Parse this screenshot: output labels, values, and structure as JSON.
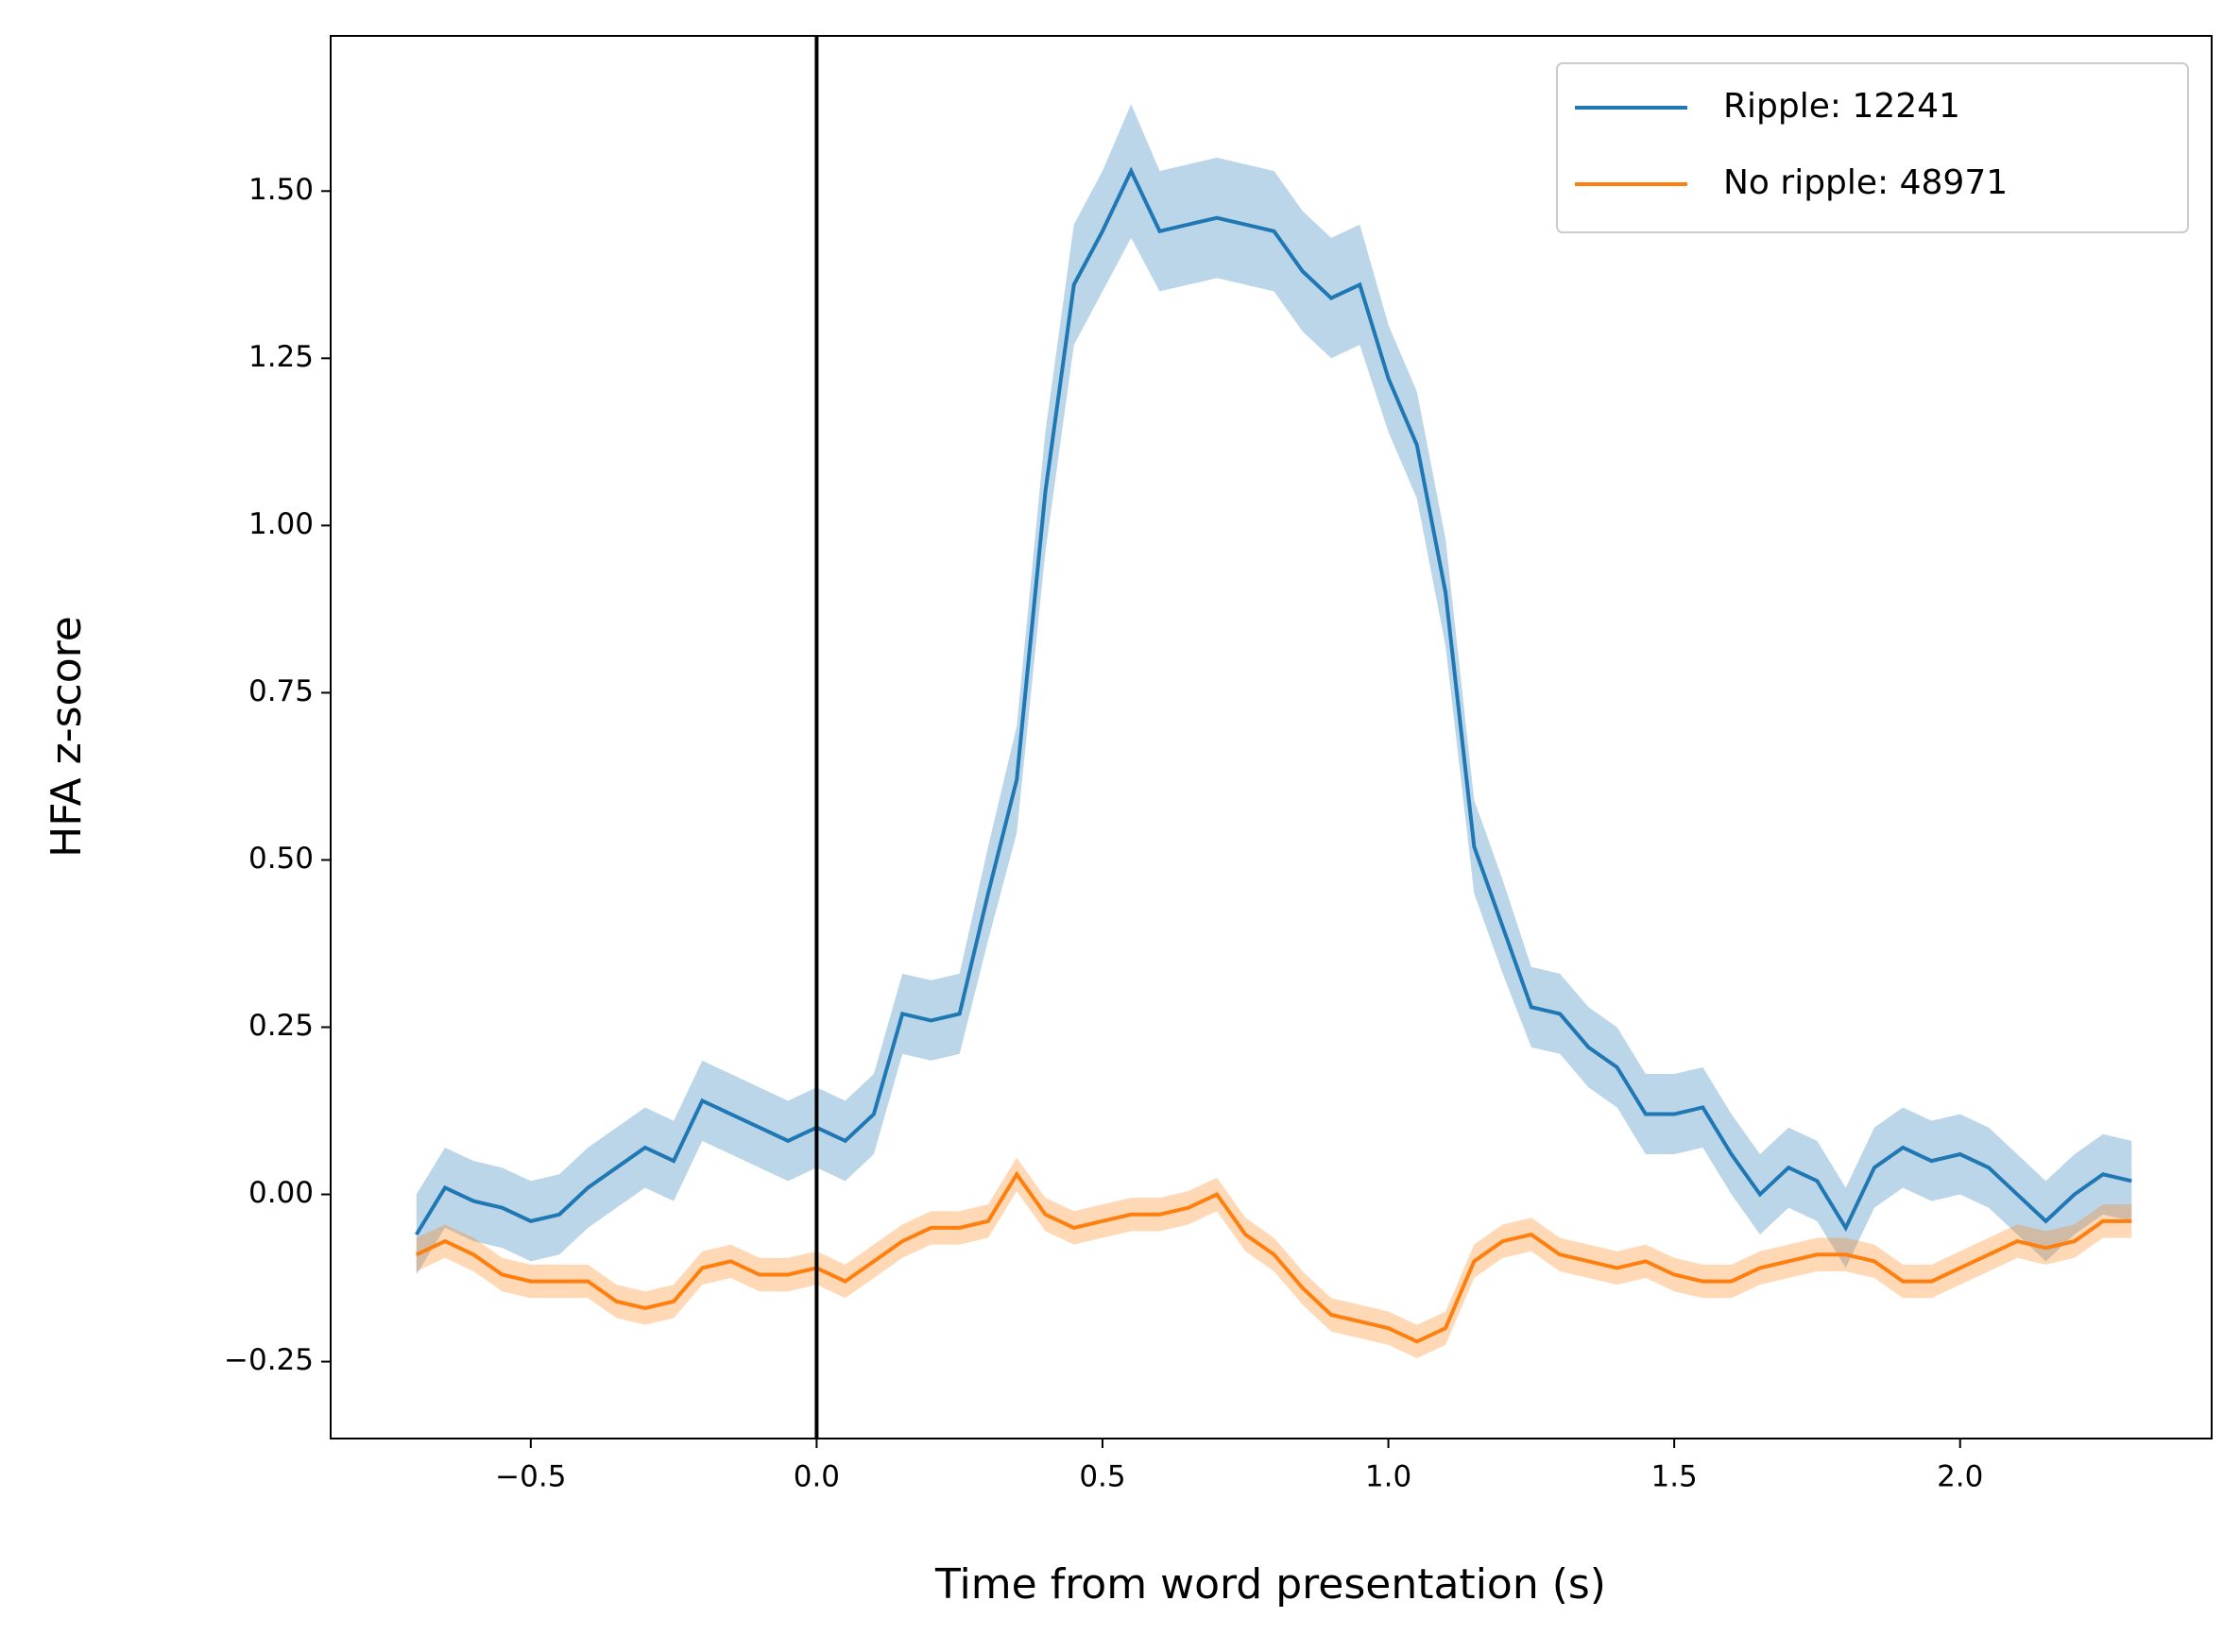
{
  "chart_data": {
    "type": "line",
    "x_label": "Time from word presentation (s)",
    "y_label": "HFA z-score",
    "x": [
      -0.7,
      -0.65,
      -0.6,
      -0.55,
      -0.5,
      -0.45,
      -0.4,
      -0.35,
      -0.3,
      -0.25,
      -0.2,
      -0.15,
      -0.1,
      -0.05,
      0,
      0.05,
      0.1,
      0.15,
      0.2,
      0.25,
      0.3,
      0.35,
      0.4,
      0.45,
      0.5,
      0.55,
      0.6,
      0.65,
      0.7,
      0.75,
      0.8,
      0.85,
      0.9,
      0.95,
      1,
      1.05,
      1.1,
      1.15,
      1.2,
      1.25,
      1.3,
      1.35,
      1.4,
      1.45,
      1.5,
      1.55,
      1.6,
      1.65,
      1.7,
      1.75,
      1.8,
      1.85,
      1.9,
      1.95,
      2,
      2.05,
      2.1,
      2.15,
      2.2,
      2.25,
      2.3
    ],
    "series": [
      {
        "name": "Ripple: 12241",
        "color": "#1f77b4",
        "values": [
          -0.06,
          0.01,
          -0.01,
          -0.02,
          -0.04,
          -0.03,
          0.01,
          0.04,
          0.07,
          0.05,
          0.14,
          0.12,
          0.1,
          0.08,
          0.1,
          0.08,
          0.12,
          0.27,
          0.26,
          0.27,
          0.45,
          0.62,
          1.05,
          1.36,
          1.44,
          1.53,
          1.44,
          1.45,
          1.46,
          1.45,
          1.44,
          1.38,
          1.34,
          1.36,
          1.22,
          1.12,
          0.9,
          0.52,
          0.4,
          0.28,
          0.27,
          0.22,
          0.19,
          0.12,
          0.12,
          0.13,
          0.06,
          0,
          0.04,
          0.02,
          -0.05,
          0.04,
          0.07,
          0.05,
          0.06,
          0.04,
          0,
          -0.04,
          0,
          0.03,
          0.02
        ],
        "errors": [
          0.06,
          0.06,
          0.06,
          0.06,
          0.06,
          0.06,
          0.06,
          0.06,
          0.06,
          0.06,
          0.06,
          0.06,
          0.06,
          0.06,
          0.06,
          0.06,
          0.06,
          0.06,
          0.06,
          0.06,
          0.07,
          0.08,
          0.09,
          0.09,
          0.09,
          0.1,
          0.09,
          0.09,
          0.09,
          0.09,
          0.09,
          0.09,
          0.09,
          0.09,
          0.08,
          0.08,
          0.08,
          0.07,
          0.07,
          0.06,
          0.06,
          0.06,
          0.06,
          0.06,
          0.06,
          0.06,
          0.06,
          0.06,
          0.06,
          0.06,
          0.06,
          0.06,
          0.06,
          0.06,
          0.06,
          0.06,
          0.06,
          0.06,
          0.06,
          0.06,
          0.06
        ]
      },
      {
        "name": "No ripple: 48971",
        "color": "#ff7f0e",
        "values": [
          -0.09,
          -0.07,
          -0.09,
          -0.12,
          -0.13,
          -0.13,
          -0.13,
          -0.16,
          -0.17,
          -0.16,
          -0.11,
          -0.1,
          -0.12,
          -0.12,
          -0.11,
          -0.13,
          -0.1,
          -0.07,
          -0.05,
          -0.05,
          -0.04,
          0.03,
          -0.03,
          -0.05,
          -0.04,
          -0.03,
          -0.03,
          -0.02,
          0,
          -0.06,
          -0.09,
          -0.14,
          -0.18,
          -0.19,
          -0.2,
          -0.22,
          -0.2,
          -0.1,
          -0.07,
          -0.06,
          -0.09,
          -0.1,
          -0.11,
          -0.1,
          -0.12,
          -0.13,
          -0.13,
          -0.11,
          -0.1,
          -0.09,
          -0.09,
          -0.1,
          -0.13,
          -0.13,
          -0.11,
          -0.09,
          -0.07,
          -0.08,
          -0.07,
          -0.04,
          -0.04
        ],
        "errors": [
          0.025,
          0.025,
          0.025,
          0.025,
          0.025,
          0.025,
          0.025,
          0.025,
          0.025,
          0.025,
          0.025,
          0.025,
          0.025,
          0.025,
          0.025,
          0.025,
          0.025,
          0.025,
          0.025,
          0.025,
          0.025,
          0.025,
          0.025,
          0.025,
          0.025,
          0.025,
          0.025,
          0.025,
          0.025,
          0.025,
          0.025,
          0.025,
          0.025,
          0.025,
          0.025,
          0.025,
          0.025,
          0.025,
          0.025,
          0.025,
          0.025,
          0.025,
          0.025,
          0.025,
          0.025,
          0.025,
          0.025,
          0.025,
          0.025,
          0.025,
          0.025,
          0.025,
          0.025,
          0.025,
          0.025,
          0.025,
          0.025,
          0.025,
          0.025,
          0.025,
          0.025
        ]
      }
    ],
    "vline": 0,
    "xlim": [
      -0.85,
      2.44
    ],
    "ylim": [
      -0.365,
      1.732
    ],
    "xticks": [
      {
        "value": -0.5,
        "label": "−0.5"
      },
      {
        "value": 0,
        "label": "0.0"
      },
      {
        "value": 0.5,
        "label": "0.5"
      },
      {
        "value": 1,
        "label": "1.0"
      },
      {
        "value": 1.5,
        "label": "1.5"
      },
      {
        "value": 2,
        "label": "2.0"
      }
    ],
    "yticks": [
      {
        "value": -0.25,
        "label": "−0.25"
      },
      {
        "value": 0,
        "label": "0.00"
      },
      {
        "value": 0.25,
        "label": "0.25"
      },
      {
        "value": 0.5,
        "label": "0.50"
      },
      {
        "value": 0.75,
        "label": "0.75"
      },
      {
        "value": 1,
        "label": "1.00"
      },
      {
        "value": 1.25,
        "label": "1.25"
      },
      {
        "value": 1.5,
        "label": "1.50"
      }
    ],
    "legend": "upper right",
    "grid": false
  }
}
